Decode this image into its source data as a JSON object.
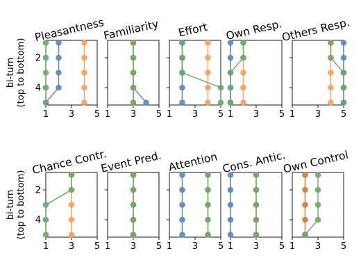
{
  "chart_data": {
    "type": "line",
    "ylabel": "bi-turn\n(top to bottom)",
    "xlim": [
      1,
      5
    ],
    "x_ticks": [
      "1",
      "3",
      "5"
    ],
    "ylim": [
      5,
      1
    ],
    "y_ticks": [
      "2",
      "4"
    ],
    "y_points": [
      1,
      2,
      3,
      4,
      5
    ],
    "colors": {
      "blue": "#5a87bd",
      "orange": "#f5a05d",
      "green": "#6aa86a",
      "brown": "#d07a3a"
    },
    "panels": [
      {
        "title": "Pleasantness",
        "series": [
          {
            "color": "blue",
            "x": [
              2,
              2,
              2,
              2,
              1
            ]
          },
          {
            "color": "orange",
            "x": [
              4,
              4,
              4,
              4,
              4
            ]
          },
          {
            "color": "green",
            "x": [
              1,
              1,
              1,
              1,
              1
            ]
          }
        ]
      },
      {
        "title": "Familiarity",
        "series": [
          {
            "color": "blue",
            "x": [
              3,
              3,
              3,
              3,
              4
            ]
          },
          {
            "color": "orange",
            "x": [
              3,
              3,
              3,
              3,
              3
            ]
          },
          {
            "color": "green",
            "x": [
              3,
              3,
              3,
              3,
              3
            ]
          }
        ]
      },
      {
        "title": "Effort",
        "series": [
          {
            "color": "blue",
            "x": [
              2,
              2,
              2,
              2,
              2
            ]
          },
          {
            "color": "orange",
            "x": [
              4,
              4,
              4,
              4,
              4
            ]
          },
          {
            "color": "green",
            "x": [
              2,
              2,
              2,
              5,
              5
            ]
          }
        ]
      },
      {
        "title": "Own Resp.",
        "series": [
          {
            "color": "blue",
            "x": [
              1,
              1,
              1,
              1,
              1
            ]
          },
          {
            "color": "orange",
            "x": [
              2,
              2,
              2,
              2,
              2
            ]
          },
          {
            "color": "green",
            "x": [
              2,
              2,
              1,
              1,
              1
            ]
          }
        ]
      },
      {
        "title": "Others Resp.",
        "series": [
          {
            "color": "blue",
            "x": [
              5,
              5,
              5,
              5,
              5
            ]
          },
          {
            "color": "orange",
            "x": [
              4,
              4,
              4,
              4,
              4
            ]
          },
          {
            "color": "green",
            "x": [
              4,
              4,
              5,
              5,
              5
            ]
          }
        ]
      },
      {
        "title": "Chance Contr.",
        "series": [
          {
            "color": "orange",
            "x": [
              3,
              3,
              3,
              3,
              3
            ]
          },
          {
            "color": "green",
            "x": [
              3,
              3,
              1,
              1,
              1
            ]
          }
        ]
      },
      {
        "title": "Event Pred.",
        "series": [
          {
            "color": "blue",
            "x": [
              3,
              3,
              3,
              3,
              3
            ]
          },
          {
            "color": "orange",
            "x": [
              3,
              3,
              3,
              3,
              3
            ]
          },
          {
            "color": "green",
            "x": [
              3,
              3,
              3,
              3,
              3
            ]
          }
        ]
      },
      {
        "title": "Attention",
        "series": [
          {
            "color": "blue",
            "x": [
              2,
              2,
              2,
              2,
              2
            ]
          },
          {
            "color": "orange",
            "x": [
              4,
              4,
              4,
              4,
              4
            ]
          },
          {
            "color": "green",
            "x": [
              4,
              4,
              4,
              4,
              4
            ]
          }
        ]
      },
      {
        "title": "Cons. Antic.",
        "series": [
          {
            "color": "blue",
            "x": [
              1,
              1,
              1,
              1,
              1
            ]
          },
          {
            "color": "orange",
            "x": [
              3,
              3,
              3,
              3,
              3
            ]
          },
          {
            "color": "green",
            "x": [
              3,
              3,
              3,
              3,
              3
            ]
          }
        ]
      },
      {
        "title": "Own Control",
        "series": [
          {
            "color": "brown",
            "x": [
              2,
              2,
              2,
              2,
              2
            ]
          },
          {
            "color": "green",
            "x": [
              3,
              3,
              3,
              3,
              2
            ]
          }
        ]
      }
    ]
  }
}
